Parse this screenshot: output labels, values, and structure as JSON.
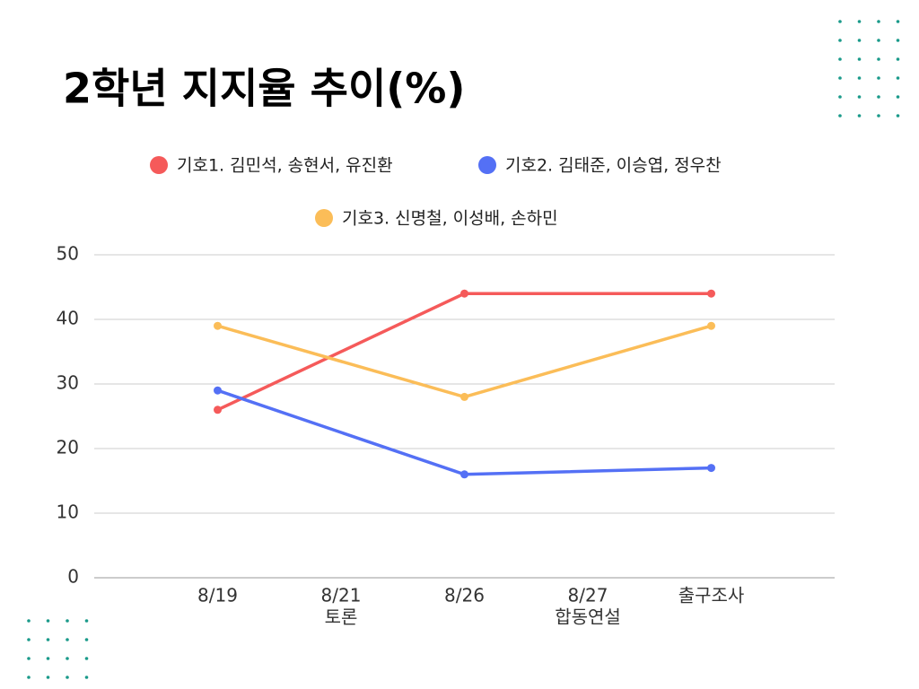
{
  "chart_data": {
    "type": "line",
    "title": "2학년 지지율 추이(%)",
    "categories": [
      [
        "8/19"
      ],
      [
        "8/21",
        "토론"
      ],
      [
        "8/26"
      ],
      [
        "8/27",
        "합동연설"
      ],
      [
        "출구조사"
      ]
    ],
    "series": [
      {
        "name": "기호1. 김민석, 송현서, 유진환",
        "color": "#f55a5a",
        "values": [
          26,
          null,
          44,
          null,
          44
        ]
      },
      {
        "name": "기호2. 김태준, 이승엽, 정우찬",
        "color": "#5470f5",
        "values": [
          29,
          null,
          16,
          null,
          17
        ]
      },
      {
        "name": "기호3. 신명철, 이성배, 손하민",
        "color": "#fbbd58",
        "values": [
          39,
          null,
          28,
          null,
          39
        ]
      }
    ],
    "connect_gaps": true,
    "ylim": [
      0,
      50
    ],
    "yticks": [
      0,
      10,
      20,
      30,
      40,
      50
    ],
    "grid": true,
    "legend": "top"
  }
}
